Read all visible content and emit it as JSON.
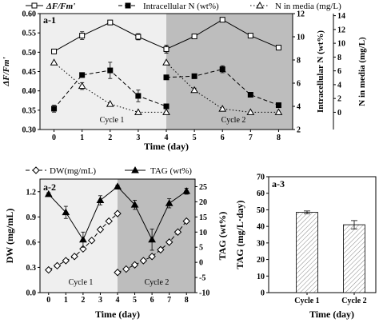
{
  "chart_data": [
    {
      "id": "a1",
      "panel_label": "a-1",
      "type": "line",
      "x": [
        0,
        1,
        2,
        3,
        4,
        4,
        5,
        6,
        7,
        8
      ],
      "xlabel": "Time (day)",
      "xlim": [
        -0.5,
        8.5
      ],
      "xticks": [
        "0",
        "1",
        "2",
        "3",
        "4",
        "5",
        "6",
        "7",
        "8"
      ],
      "cycles": [
        {
          "label": "Cycle 1",
          "range": [
            -0.5,
            4
          ],
          "shade": "#efefef"
        },
        {
          "label": "Cycle 2",
          "range": [
            4,
            8.5
          ],
          "shade": "#bdbdbd"
        }
      ],
      "axes": {
        "left": {
          "label": "ΔF/Fm'",
          "lim": [
            0.3,
            0.6
          ],
          "ticks": [
            "0.30",
            "0.35",
            "0.40",
            "0.45",
            "0.50",
            "0.55",
            "0.60"
          ]
        },
        "right1": {
          "label": "Intracellular N (wt%)",
          "lim": [
            2,
            12
          ],
          "ticks": [
            "2",
            "4",
            "6",
            "8",
            "10",
            "12"
          ]
        },
        "right2": {
          "label": "N in media (mg/L)",
          "lim": [
            -2.5,
            14.3
          ],
          "ticks": [
            "0",
            "2",
            "4",
            "6",
            "8",
            "10",
            "12",
            "14"
          ]
        }
      },
      "series": [
        {
          "name": "ΔF/Fm'",
          "axis": "left",
          "style": "solid-open-square",
          "segments": [
            {
              "x": [
                0,
                1,
                2,
                3,
                4
              ],
              "y": [
                0.502,
                0.543,
                0.577,
                0.54,
                0.508
              ],
              "err": [
                0.003,
                0.01,
                0.003,
                0.008,
                0.01
              ]
            },
            {
              "x": [
                4,
                5,
                6,
                7,
                8
              ],
              "y": [
                0.508,
                0.541,
                0.584,
                0.543,
                0.512
              ],
              "err": [
                0.01,
                0.005,
                0.006,
                0.006,
                0.006
              ]
            }
          ]
        },
        {
          "name": "Intracellular N (wt%)",
          "axis": "right1",
          "style": "dashed-filled-square",
          "segments": [
            {
              "x": [
                0,
                1,
                2,
                3,
                4
              ],
              "y": [
                3.8,
                6.7,
                7.1,
                4.9,
                4.0
              ],
              "err": [
                0.3,
                0.2,
                0.7,
                0.5,
                0.1
              ]
            },
            {
              "x": [
                4,
                5,
                6,
                7,
                8
              ],
              "y": [
                6.5,
                6.6,
                7.2,
                5.0,
                4.1
              ],
              "err": [
                0.2,
                0.2,
                0.3,
                0.1,
                0.1
              ]
            }
          ]
        },
        {
          "name": "N in media (mg/L)",
          "axis": "right2",
          "style": "dotted-open-triangle",
          "segments": [
            {
              "x": [
                0,
                1,
                2,
                3,
                4
              ],
              "y": [
                7.2,
                3.8,
                1.2,
                0.0,
                0.0
              ],
              "err": [
                0,
                0.5,
                0,
                0,
                0
              ]
            },
            {
              "x": [
                4,
                5,
                6,
                7,
                8
              ],
              "y": [
                7.2,
                3.2,
                0.5,
                0.0,
                0.0
              ],
              "err": [
                0,
                0.3,
                0,
                0,
                0
              ]
            }
          ]
        }
      ]
    },
    {
      "id": "a2",
      "panel_label": "a-2",
      "type": "line",
      "xlabel": "Time (day)",
      "xlim": [
        -0.5,
        8.5
      ],
      "xticks": [
        "0",
        "1",
        "2",
        "3",
        "4",
        "5",
        "6",
        "7",
        "8"
      ],
      "cycles": [
        {
          "label": "Cycle 1",
          "range": [
            -0.5,
            4
          ],
          "shade": "#efefef"
        },
        {
          "label": "Cycle 2",
          "range": [
            4,
            8.5
          ],
          "shade": "#bdbdbd"
        }
      ],
      "axes": {
        "left": {
          "label": "DW (mg/mL)",
          "lim": [
            0.0,
            1.35
          ],
          "ticks": [
            "0.0",
            "0.3",
            "0.6",
            "0.9",
            "1.2"
          ]
        },
        "right": {
          "label": "TAG (wt%)",
          "lim": [
            -10,
            27.5
          ],
          "ticks": [
            "-10",
            "-5",
            "0",
            "5",
            "10",
            "15",
            "20",
            "25"
          ]
        }
      },
      "series": [
        {
          "name": "DW(mg/mL)",
          "axis": "left",
          "style": "dashed-open-diamond",
          "segments": [
            {
              "x": [
                0,
                0.5,
                1,
                1.5,
                2,
                2.5,
                3,
                3.5,
                4
              ],
              "y": [
                0.27,
                0.32,
                0.38,
                0.43,
                0.52,
                0.62,
                0.75,
                0.85,
                0.94
              ],
              "err": [
                0,
                0,
                0,
                0,
                0,
                0,
                0,
                0,
                0
              ]
            },
            {
              "x": [
                4,
                4.5,
                5,
                5.5,
                6,
                6.5,
                7,
                7.5,
                8
              ],
              "y": [
                0.24,
                0.28,
                0.33,
                0.38,
                0.43,
                0.51,
                0.6,
                0.72,
                0.85
              ],
              "err": [
                0,
                0,
                0,
                0,
                0,
                0,
                0,
                0,
                0
              ]
            }
          ]
        },
        {
          "name": "TAG (wt%)",
          "axis": "right",
          "style": "solid-filled-triangle",
          "segments": [
            {
              "x": [
                0,
                1,
                2,
                3,
                4
              ],
              "y": [
                22.5,
                16.5,
                7.5,
                20.5,
                25.0
              ],
              "err": [
                0.5,
                2.0,
                2.5,
                1.5,
                0.5
              ]
            },
            {
              "x": [
                4,
                5,
                6,
                7,
                8
              ],
              "y": [
                25.0,
                19.0,
                7.5,
                19.5,
                23.5
              ],
              "err": [
                0.5,
                1.5,
                3.5,
                1.5,
                1.0
              ]
            }
          ]
        }
      ]
    },
    {
      "id": "a3",
      "panel_label": "a-3",
      "type": "bar",
      "categories": [
        "Cycle 1",
        "Cycle 2"
      ],
      "values": [
        48.5,
        41.0
      ],
      "errors": [
        0.8,
        2.5
      ],
      "xlabel": "Time (day)",
      "ylabel": "TAG (mg/L·day)",
      "ylim": [
        0,
        70
      ],
      "yticks": [
        "0",
        "10",
        "20",
        "30",
        "40",
        "50",
        "60",
        "70"
      ]
    }
  ],
  "legend_a1": [
    {
      "label": "ΔF/Fm'",
      "style": "solid-open-square"
    },
    {
      "label": "Intracellular N (wt%)",
      "style": "dashed-filled-square"
    },
    {
      "label": "N in media (mg/L)",
      "style": "dotted-open-triangle"
    }
  ],
  "legend_a2": [
    {
      "label": "DW(mg/mL)",
      "style": "dashed-open-diamond"
    },
    {
      "label": "TAG (wt%)",
      "style": "solid-filled-triangle"
    }
  ]
}
